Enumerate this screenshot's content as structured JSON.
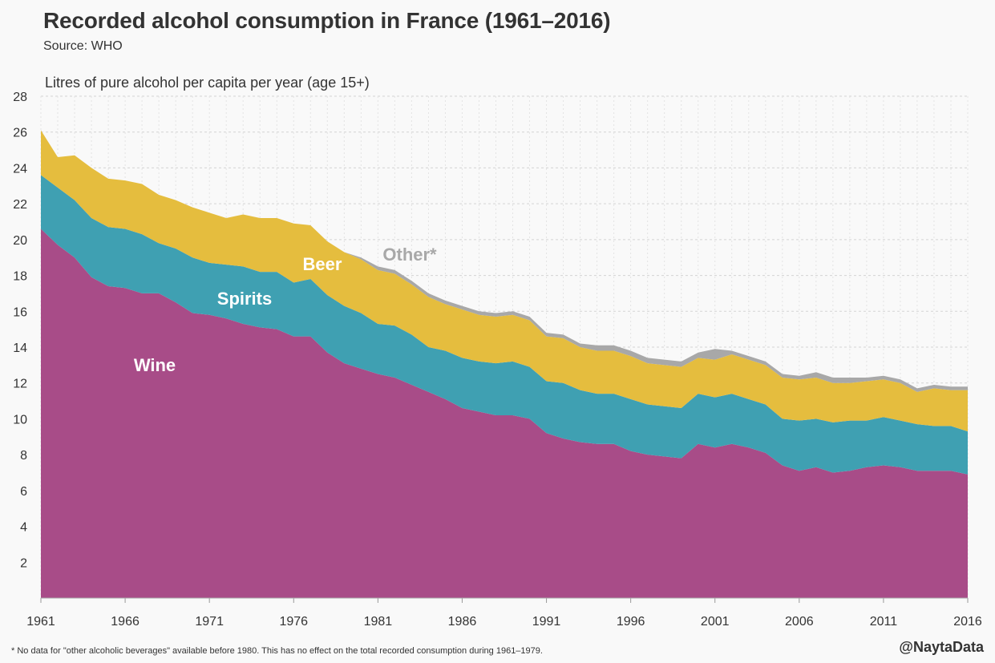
{
  "chart_data": {
    "type": "area",
    "stacked": true,
    "title": "Recorded alcohol consumption in France (1961–2016)",
    "subtitle": "Source: WHO",
    "ylabel": "Litres of pure alcohol per capita per year (age 15+)",
    "xlabel": "",
    "xlim": [
      1961,
      2016
    ],
    "ylim": [
      0,
      28
    ],
    "x_ticks": [
      1961,
      1966,
      1971,
      1976,
      1981,
      1986,
      1991,
      1996,
      2001,
      2006,
      2011,
      2016
    ],
    "y_ticks": [
      2,
      4,
      6,
      8,
      10,
      12,
      14,
      16,
      18,
      20,
      22,
      24,
      26,
      28
    ],
    "grid": true,
    "x": [
      1961,
      1962,
      1963,
      1964,
      1965,
      1966,
      1967,
      1968,
      1969,
      1970,
      1971,
      1972,
      1973,
      1974,
      1975,
      1976,
      1977,
      1978,
      1979,
      1980,
      1981,
      1982,
      1983,
      1984,
      1985,
      1986,
      1987,
      1988,
      1989,
      1990,
      1991,
      1992,
      1993,
      1994,
      1995,
      1996,
      1997,
      1998,
      1999,
      2000,
      2001,
      2002,
      2003,
      2004,
      2005,
      2006,
      2007,
      2008,
      2009,
      2010,
      2011,
      2012,
      2013,
      2014,
      2015,
      2016
    ],
    "series": [
      {
        "name": "Wine",
        "color": "#a84c88",
        "values": [
          20.6,
          19.7,
          19.0,
          17.9,
          17.4,
          17.3,
          17.0,
          17.0,
          16.5,
          15.9,
          15.8,
          15.6,
          15.3,
          15.1,
          15.0,
          14.6,
          14.6,
          13.7,
          13.1,
          12.8,
          12.5,
          12.3,
          11.9,
          11.5,
          11.1,
          10.6,
          10.4,
          10.2,
          10.2,
          10.0,
          9.2,
          8.9,
          8.7,
          8.6,
          8.6,
          8.2,
          8.0,
          7.9,
          7.8,
          8.6,
          8.4,
          8.6,
          8.4,
          8.1,
          7.4,
          7.1,
          7.3,
          7.0,
          7.1,
          7.3,
          7.4,
          7.3,
          7.1,
          7.1,
          7.1,
          6.9
        ]
      },
      {
        "name": "Spirits",
        "color": "#3fa0b2",
        "values": [
          3.0,
          3.2,
          3.2,
          3.3,
          3.3,
          3.3,
          3.3,
          2.8,
          3.0,
          3.1,
          2.9,
          3.0,
          3.2,
          3.1,
          3.2,
          3.0,
          3.2,
          3.2,
          3.2,
          3.1,
          2.8,
          2.9,
          2.8,
          2.5,
          2.7,
          2.8,
          2.8,
          2.9,
          3.0,
          2.9,
          2.9,
          3.1,
          2.9,
          2.8,
          2.8,
          2.9,
          2.8,
          2.8,
          2.8,
          2.8,
          2.8,
          2.8,
          2.7,
          2.7,
          2.6,
          2.8,
          2.7,
          2.8,
          2.8,
          2.6,
          2.7,
          2.6,
          2.6,
          2.5,
          2.5,
          2.4
        ]
      },
      {
        "name": "Beer",
        "color": "#e5bd3e",
        "values": [
          2.5,
          1.7,
          2.5,
          2.8,
          2.7,
          2.7,
          2.8,
          2.7,
          2.7,
          2.8,
          2.8,
          2.6,
          2.9,
          3.0,
          3.0,
          3.3,
          3.0,
          3.0,
          3.0,
          3.0,
          3.0,
          2.9,
          2.8,
          2.8,
          2.6,
          2.7,
          2.6,
          2.6,
          2.6,
          2.6,
          2.5,
          2.5,
          2.4,
          2.4,
          2.4,
          2.4,
          2.3,
          2.3,
          2.3,
          2.0,
          2.1,
          2.2,
          2.2,
          2.2,
          2.3,
          2.3,
          2.3,
          2.2,
          2.1,
          2.2,
          2.1,
          2.1,
          1.8,
          2.1,
          2.0,
          2.3
        ]
      },
      {
        "name": "Other*",
        "color": "#a8a8a8",
        "values": [
          0,
          0,
          0,
          0,
          0,
          0,
          0,
          0,
          0,
          0,
          0,
          0,
          0,
          0,
          0,
          0,
          0,
          0,
          0,
          0.1,
          0.2,
          0.2,
          0.2,
          0.2,
          0.2,
          0.2,
          0.2,
          0.2,
          0.2,
          0.2,
          0.2,
          0.2,
          0.2,
          0.3,
          0.3,
          0.3,
          0.3,
          0.3,
          0.3,
          0.3,
          0.6,
          0.2,
          0.2,
          0.2,
          0.2,
          0.2,
          0.3,
          0.3,
          0.3,
          0.2,
          0.2,
          0.2,
          0.2,
          0.2,
          0.2,
          0.2
        ]
      }
    ],
    "series_labels": [
      {
        "text": "Wine",
        "color": "#ffffff"
      },
      {
        "text": "Spirits",
        "color": "#ffffff"
      },
      {
        "text": "Beer",
        "color": "#ffffff"
      },
      {
        "text": "Other*",
        "color": "#a8a8a8"
      }
    ],
    "footnote": "* No data for \"other alcoholic beverages\" available before 1980. This has no effect on the total recorded consumption during 1961–1979.",
    "credit": "@NaytaData"
  }
}
